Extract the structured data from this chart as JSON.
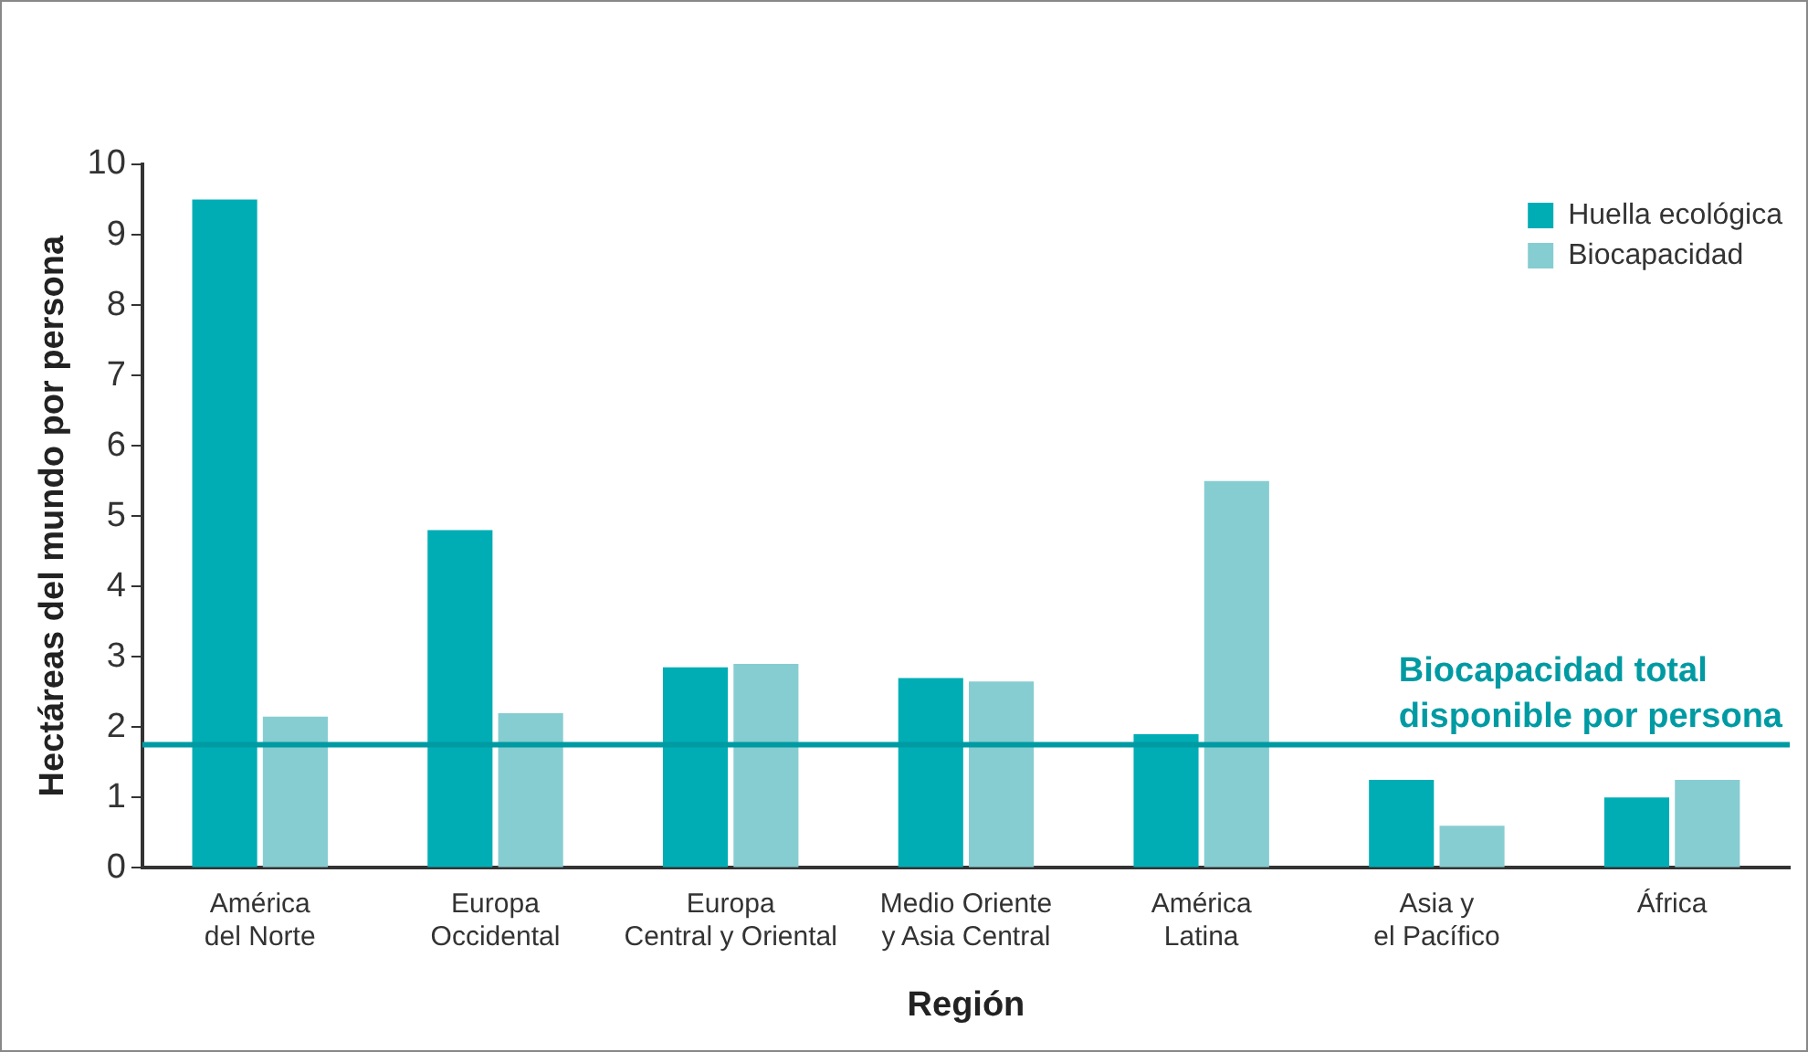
{
  "chart_data": {
    "type": "bar",
    "xlabel": "Región",
    "ylabel": "Hectáreas del mundo por persona",
    "categories": [
      "América\ndel Norte",
      "Europa\nOccidental",
      "Europa\nCentral y Oriental",
      "Medio Oriente\ny Asia Central",
      "América\nLatina",
      "Asia y\nel Pacífico",
      "África"
    ],
    "series": [
      {
        "name": "Huella ecológica",
        "color": "#00adb5",
        "values": [
          9.5,
          4.8,
          2.85,
          2.7,
          1.9,
          1.25,
          1.0
        ]
      },
      {
        "name": "Biocapacidad",
        "color": "#86cdd1",
        "values": [
          2.15,
          2.2,
          2.9,
          2.65,
          5.5,
          0.6,
          1.25
        ]
      }
    ],
    "ylim": [
      0,
      10
    ],
    "yticks": [
      0,
      1,
      2,
      3,
      4,
      5,
      6,
      7,
      8,
      9,
      10
    ],
    "grid": false,
    "legend": "top right",
    "ref_lines": [
      {
        "axis": "y",
        "value": 1.75,
        "label": "Biocapacidad total\ndisponible por persona",
        "color": "#009aa3"
      }
    ]
  }
}
